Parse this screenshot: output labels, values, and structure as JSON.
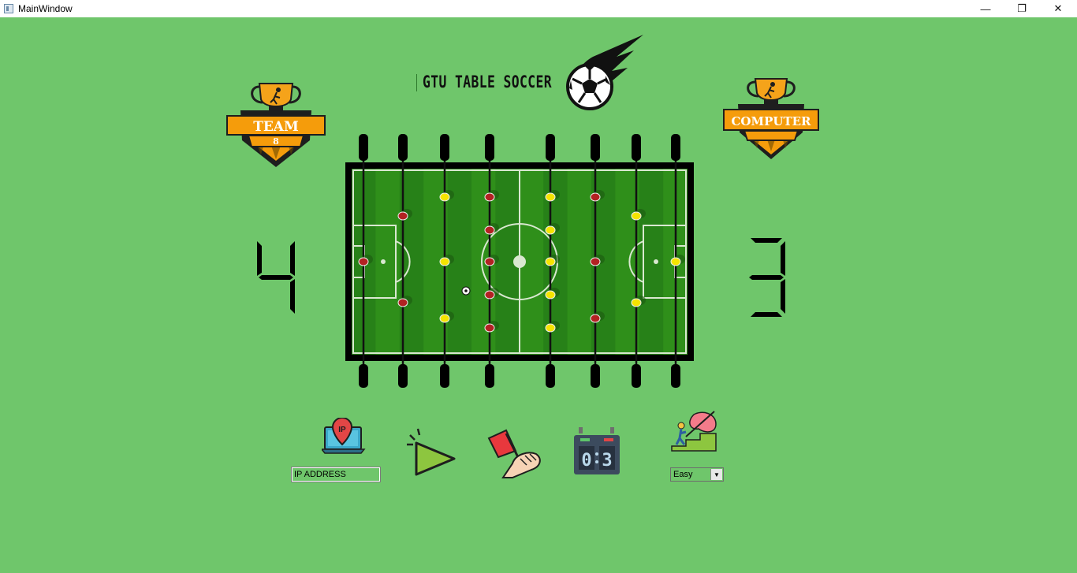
{
  "window": {
    "title": "MainWindow",
    "minimize_glyph": "—",
    "maximize_glyph": "❐",
    "close_glyph": "✕"
  },
  "game": {
    "title": "GTU TABLE SOCCER"
  },
  "team_badge": {
    "label": "TEAM",
    "number": "8"
  },
  "computer_badge": {
    "label": "COMPUTER"
  },
  "score": {
    "team": "4",
    "computer": "3"
  },
  "scoreboard_icon": {
    "left": "0",
    "right": "3"
  },
  "ip_icon_label": "IP",
  "ip_input": {
    "value": "IP ADDRESS"
  },
  "difficulty": {
    "selected": "Easy"
  },
  "colors": {
    "background": "#6fc66b",
    "field_green": "#2f8f1a",
    "frame": "#000000",
    "badge_orange": "#f59c0b",
    "badge_dark": "#222222",
    "team_red": "#b22222",
    "team_yellow": "#f5e400"
  },
  "icons": [
    "app-icon",
    "trophy-icon",
    "soccer-ball-fire-icon",
    "ip-location-icon",
    "play-icon",
    "referee-flag-icon",
    "scoreboard-icon",
    "difficulty-climb-icon"
  ]
}
